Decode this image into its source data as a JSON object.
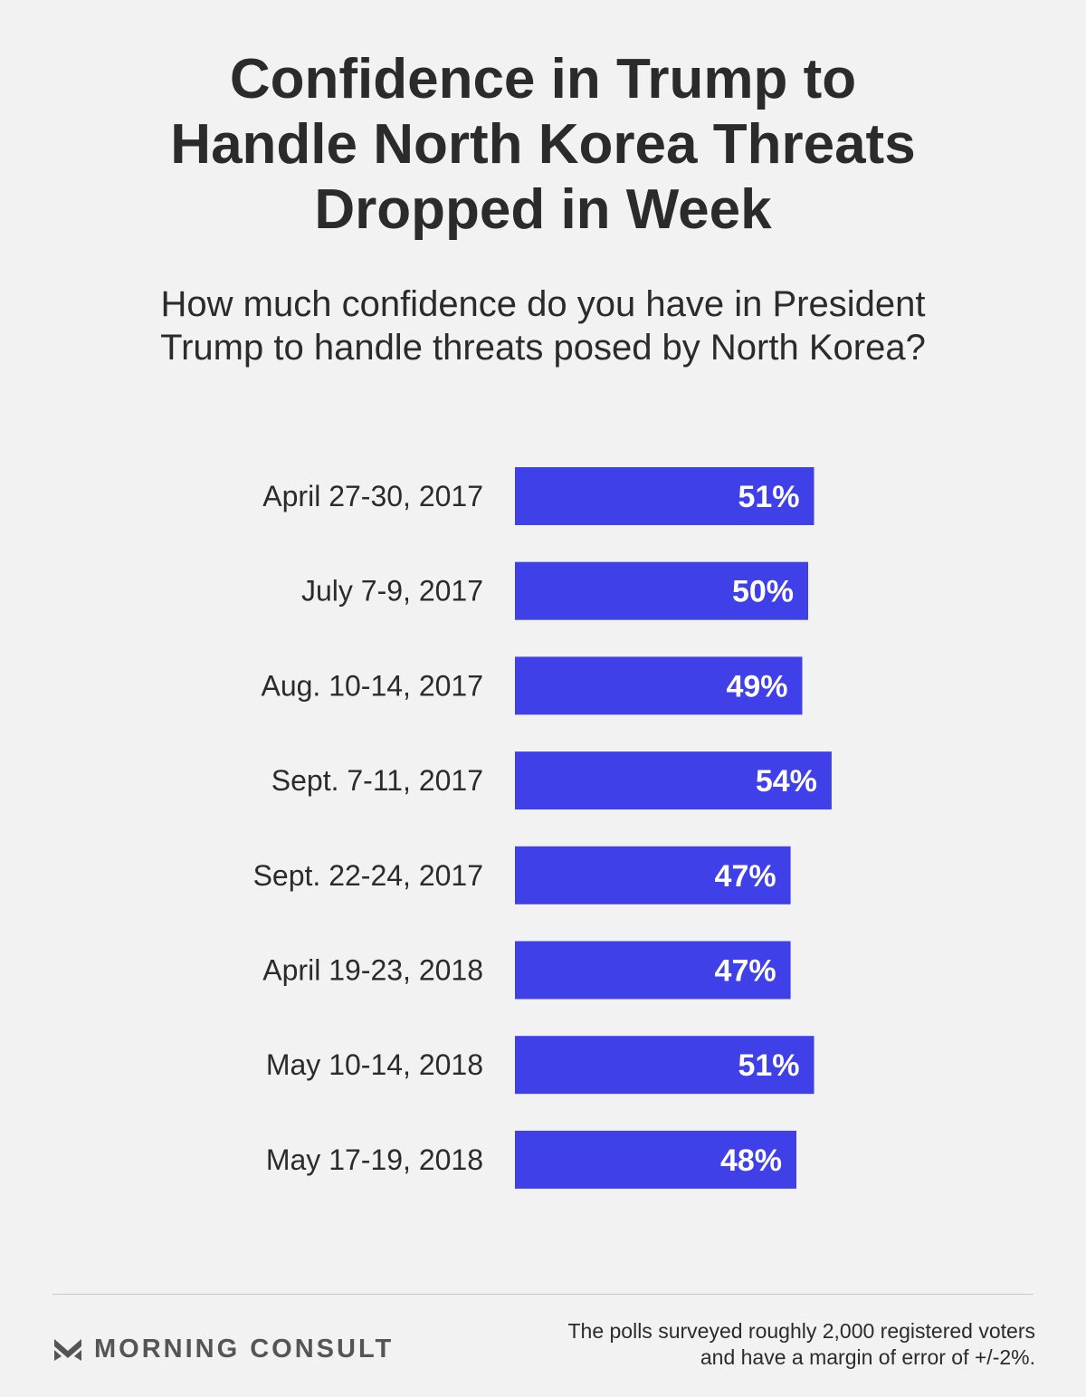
{
  "title_lines": [
    "Confidence in Trump to",
    "Handle North Korea Threats",
    "Dropped in Week"
  ],
  "subtitle_lines": [
    "How much confidence do you have in President",
    "Trump to handle threats posed by North Korea?"
  ],
  "colors": {
    "bar": "#4040e8",
    "bar_label": "#ffffff",
    "category_label": "#2b2b2b",
    "background": "#f2f2f2"
  },
  "chart_data": {
    "type": "bar",
    "orientation": "horizontal",
    "categories": [
      "April 27-30, 2017",
      "July 7-9, 2017",
      "Aug. 10-14, 2017",
      "Sept. 7-11, 2017",
      "Sept. 22-24, 2017",
      "April 19-23, 2018",
      "May 10-14, 2018",
      "May 17-19, 2018"
    ],
    "values": [
      51,
      50,
      49,
      54,
      47,
      47,
      51,
      48
    ],
    "value_labels": [
      "51%",
      "50%",
      "49%",
      "54%",
      "47%",
      "47%",
      "51%",
      "48%"
    ],
    "xlim": [
      0,
      100
    ],
    "grid": false,
    "legend": "none"
  },
  "brand": {
    "icon": "morning-consult-logo-icon",
    "name": "MORNING CONSULT"
  },
  "footnote_lines": [
    "The polls surveyed roughly 2,000 registered voters",
    "and have a margin of error of +/-2%."
  ]
}
